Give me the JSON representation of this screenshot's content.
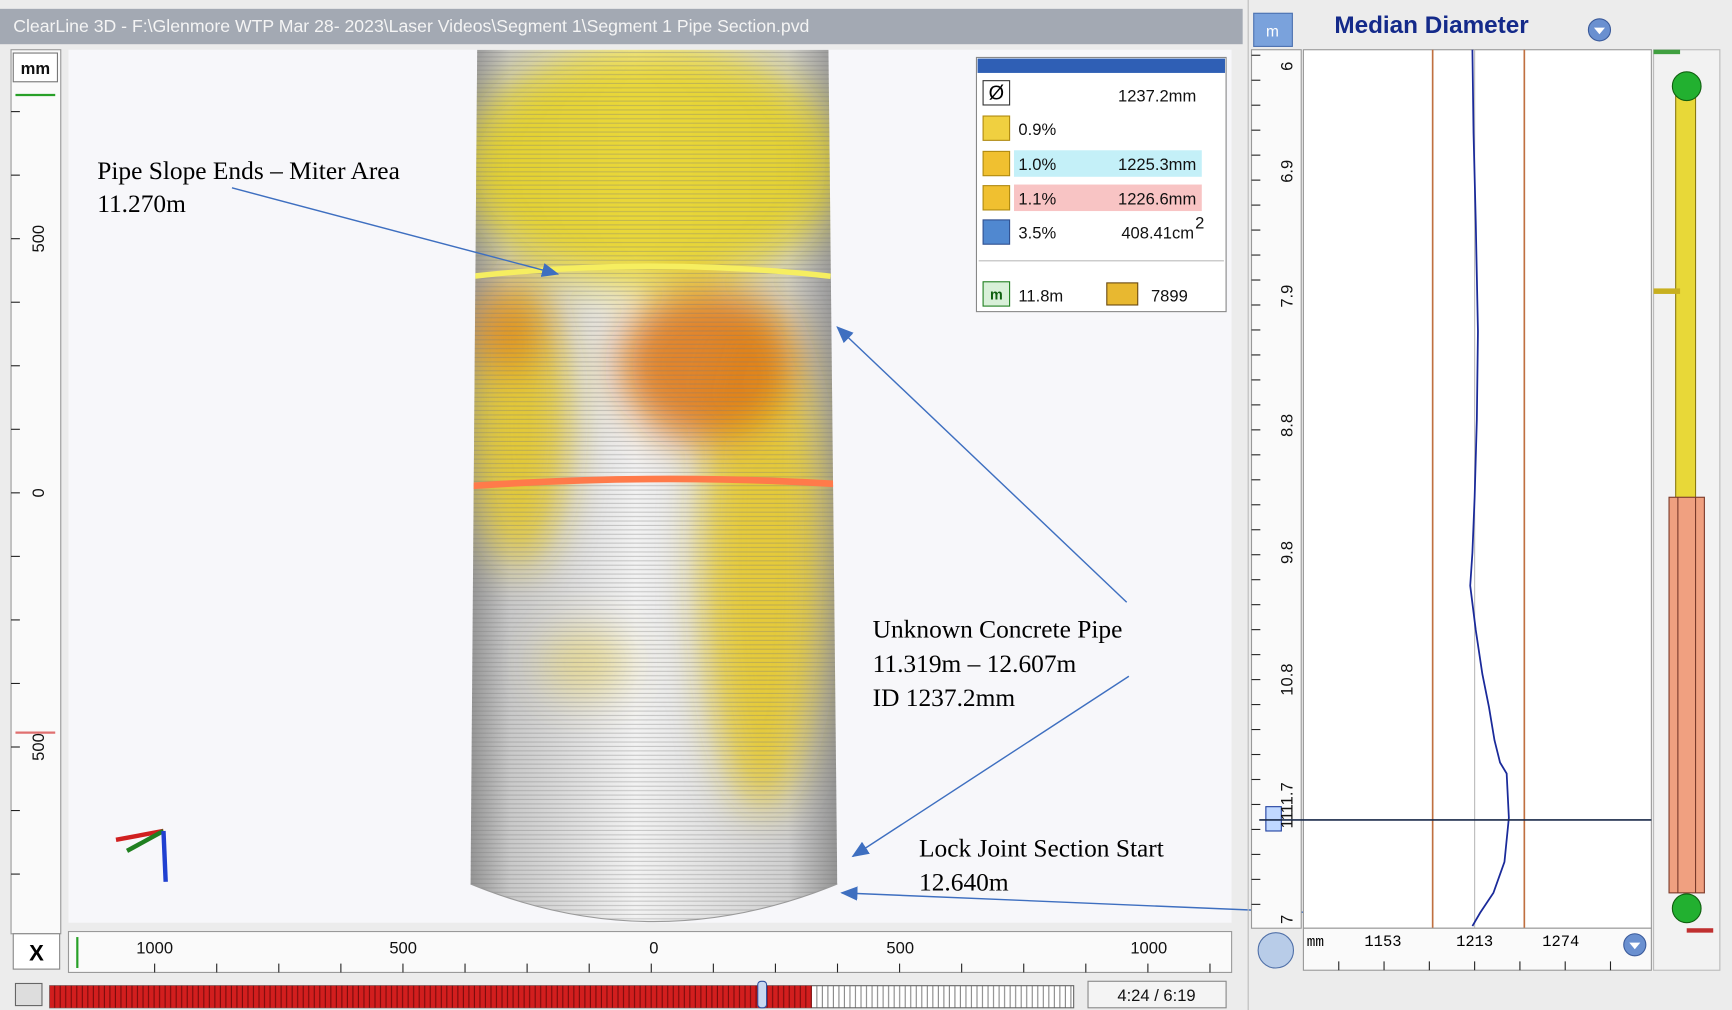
{
  "window": {
    "title": "ClearLine 3D - F:\\Glenmore WTP Mar 28- 2023\\Laser Videos\\Segment 1\\Segment 1 Pipe Section.pvd"
  },
  "viewer": {
    "unit": "mm",
    "ruler_labels": [
      "500",
      "0",
      "500"
    ],
    "x_axis": {
      "label": "X",
      "ticks": [
        "1000",
        "500",
        "0",
        "500",
        "1000"
      ]
    },
    "time": "4:24 / 6:19"
  },
  "info_panel": {
    "diameter": "1237.2mm",
    "ovality": "0.9%",
    "horizontal": {
      "percent": "1.0%",
      "value": "1225.3mm"
    },
    "vertical": {
      "percent": "1.1%",
      "value": "1226.6mm"
    },
    "area": {
      "percent": "3.5%",
      "value": "408.41cm",
      "exponent": "2"
    },
    "distance": "11.8m",
    "frame": "7899"
  },
  "annotations": [
    {
      "lines": [
        "Pipe Slope Ends – Miter Area",
        "11.270m"
      ]
    },
    {
      "lines": [
        "Unknown Concrete Pipe",
        "11.319m – 12.607m",
        "ID 1237.2mm"
      ]
    },
    {
      "lines": [
        "Lock Joint Section Start",
        "12.640m"
      ]
    }
  ],
  "profile_panel": {
    "unit_button": "m",
    "title": "Median Diameter",
    "distance_labels": [
      "6",
      "6.9",
      "7.9",
      "8.8",
      "9.8",
      "10.8",
      "11.7",
      "11",
      "7"
    ],
    "x_unit": "mm",
    "x_ticks": [
      "1153",
      "1213",
      "1274"
    ]
  }
}
